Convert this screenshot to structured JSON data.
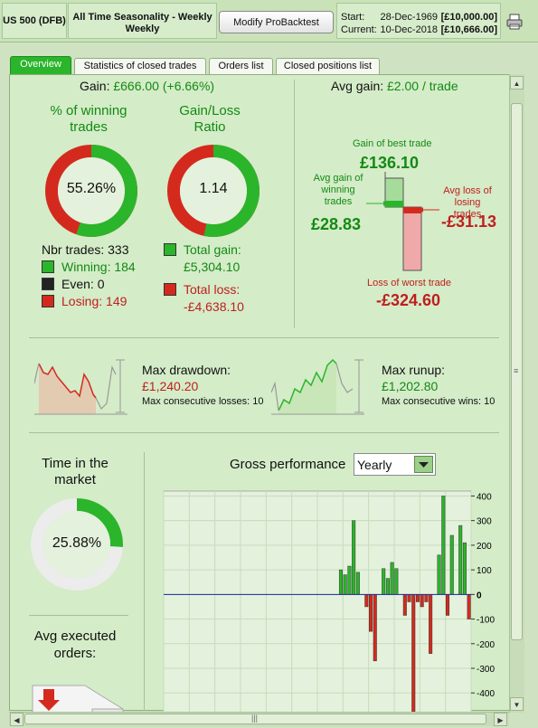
{
  "header": {
    "instrument": "US 500 (DFB)",
    "backtest_title": "All Time Seasonality - Weekly Weekly",
    "modify_button": "Modify ProBacktest",
    "start_label": "Start:",
    "start_date": "28-Dec-1969",
    "start_value": "[£10,000.00]",
    "current_label": "Current:",
    "current_date": "10-Dec-2018",
    "current_value": "[£10,666.00]",
    "print_icon": "printer-icon"
  },
  "tabs": [
    {
      "label": "Overview",
      "active": true
    },
    {
      "label": "Statistics of closed trades",
      "active": false
    },
    {
      "label": "Orders list",
      "active": false
    },
    {
      "label": "Closed positions list",
      "active": false
    }
  ],
  "overview": {
    "gain_label": "Gain:",
    "gain_value": "£666.00 (+6.66%)",
    "winning_pct_title": "% of winning trades",
    "winning_pct": 55.26,
    "winning_pct_text": "55.26%",
    "ratio_title": "Gain/Loss Ratio",
    "ratio_value": "1.14",
    "nbr_trades": "Nbr trades: 333",
    "winning": "Winning: 184",
    "even": "Even: 0",
    "losing": "Losing: 149",
    "total_gain_label": "Total gain:",
    "total_gain_value": "£5,304.10",
    "total_loss_label": "Total loss:",
    "total_loss_value": "-£4,638.10",
    "avg_gain_label": "Avg gain:",
    "avg_gain_value": "£2.00 / trade",
    "best_trade_label": "Gain of best trade",
    "best_trade_value": "£136.10",
    "avg_win_label": "Avg gain of winning trades",
    "avg_win_value": "£28.83",
    "avg_loss_label": "Avg loss of losing trades",
    "avg_loss_value": "-£31.13",
    "worst_trade_label": "Loss of worst trade",
    "worst_trade_value": "-£324.60",
    "max_drawdown_label": "Max drawdown:",
    "max_drawdown_value": "£1,240.20",
    "max_consec_losses": "Max consecutive losses: 10",
    "max_runup_label": "Max runup:",
    "max_runup_value": "£1,202.80",
    "max_consec_wins": "Max consecutive wins: 10",
    "time_in_market_title": "Time in the market",
    "time_in_market": 25.88,
    "time_in_market_text": "25.88%",
    "avg_orders_title": "Avg executed orders:",
    "gross_perf_label": "Gross performance",
    "gross_perf_period": "Yearly"
  },
  "colors": {
    "gain": "#2bb52b",
    "loss": "#d42a1e",
    "accent": "#2bb52b",
    "panel": "#d4ecc8"
  },
  "chart_data": {
    "type": "bar",
    "title": "Gross performance",
    "period": "Yearly",
    "ylim": [
      -480,
      420
    ],
    "yticks": [
      400,
      300,
      200,
      100,
      0,
      -100,
      -200,
      -300,
      -400
    ],
    "values": [
      0,
      0,
      0,
      0,
      0,
      0,
      0,
      0,
      0,
      0,
      0,
      0,
      0,
      0,
      0,
      0,
      0,
      0,
      0,
      0,
      0,
      0,
      0,
      0,
      0,
      0,
      0,
      0,
      0,
      0,
      0,
      0,
      0,
      0,
      0,
      0,
      0,
      0,
      0,
      0,
      0,
      100,
      80,
      115,
      300,
      90,
      0,
      -50,
      -150,
      -270,
      0,
      105,
      65,
      130,
      105,
      0,
      -85,
      -30,
      -480,
      -30,
      -50,
      -30,
      -240,
      0,
      160,
      400,
      -85,
      240,
      0,
      280,
      210,
      -100
    ],
    "grid": true
  }
}
